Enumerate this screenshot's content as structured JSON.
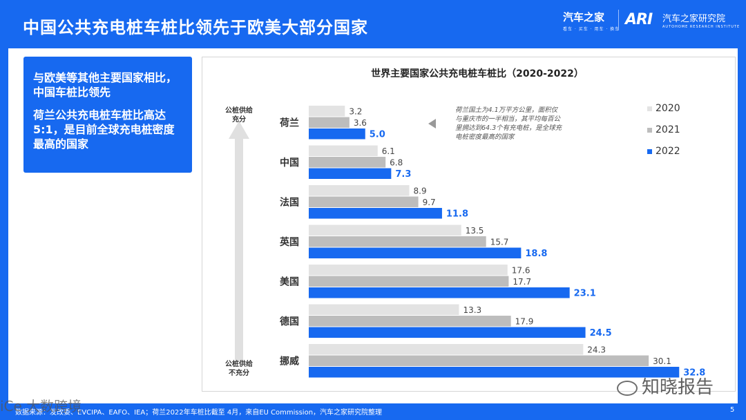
{
  "header": {
    "title": "中国公共充电桩车桩比领先于欧美大部分国家",
    "brand1_name": "汽车之家",
    "brand1_tagline": "看车 · 买车 · 用车 · 换车",
    "brand2_logo": "ARI",
    "brand2_name": "汽车之家研究院",
    "brand2_tagline": "AUTOHOME RESEARCH INSTITUTE"
  },
  "callout": {
    "point1": "与欧美等其他主要国家相比，中国车桩比领先",
    "point2": "荷兰公共充电桩车桩比高达5:1，是目前全球充电桩密度最高的国家"
  },
  "chart_data": {
    "type": "bar",
    "orientation": "horizontal",
    "title": "世界主要国家公共充电桩车桩比（2020-2022）",
    "categories": [
      "荷兰",
      "中国",
      "法国",
      "英国",
      "美国",
      "德国",
      "挪威"
    ],
    "series": [
      {
        "name": "2020",
        "color": "#e3e3e3",
        "values": [
          3.2,
          6.1,
          8.9,
          13.5,
          17.6,
          13.3,
          24.3
        ]
      },
      {
        "name": "2021",
        "color": "#bdbdbd",
        "values": [
          3.6,
          6.8,
          9.7,
          15.7,
          17.7,
          17.9,
          30.1
        ]
      },
      {
        "name": "2022",
        "color": "#1769f0",
        "values": [
          5.0,
          7.3,
          11.8,
          18.8,
          23.1,
          24.5,
          32.8
        ]
      }
    ],
    "xlim": [
      0,
      33
    ],
    "arrow_top_label": [
      "公桩供给",
      "充分"
    ],
    "arrow_bottom_label": [
      "公桩供给",
      "不充分"
    ],
    "annotation": [
      "荷兰国土为4.1万平方公里，面积仅",
      "与重庆市的一半相当，其平均每百公",
      "里拥达到64.3个有充电桩，是全球充",
      "电桩密度最高的国家"
    ],
    "legend_position": "top-right"
  },
  "footer": {
    "source": "数据来源：发改委、EVCIPA、EAFO、IEA；荷兰2022年车桩比截至 4月，来自EU Commission，汽车之家研究院整理",
    "page": "5"
  },
  "watermark": {
    "text": "知晓报告",
    "text2": "iCe 大数跨境"
  }
}
